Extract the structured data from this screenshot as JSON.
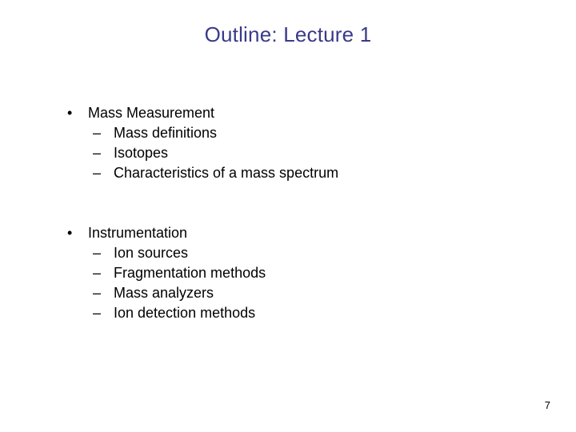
{
  "title": {
    "text": "Outline: Lecture 1",
    "color": "#3a3a8a",
    "fontsize": 26
  },
  "body": {
    "text_color": "#000000",
    "fontsize": 18,
    "bullet_char": "•",
    "dash_char": "–"
  },
  "items": [
    {
      "label": "Mass Measurement",
      "subitems": [
        "Mass definitions",
        "Isotopes",
        "Characteristics of a mass spectrum"
      ]
    },
    {
      "label": "Instrumentation",
      "subitems": [
        "Ion sources",
        "Fragmentation methods",
        "Mass analyzers",
        "Ion detection methods"
      ]
    }
  ],
  "page_number": "7",
  "background_color": "#ffffff"
}
